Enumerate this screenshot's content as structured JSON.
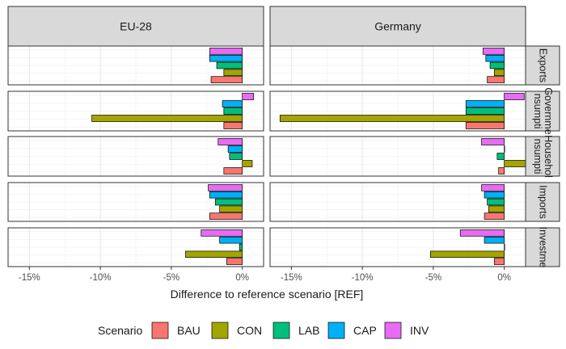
{
  "chart_data": {
    "type": "bar",
    "orientation": "horizontal",
    "facets_columns": [
      "EU-28",
      "Germany"
    ],
    "facets_rows": [
      "Exports",
      "Government consumption",
      "Household consumption",
      "Imports",
      "Investment"
    ],
    "facets_rows_display": [
      "Exports",
      "Governme\nnsumpti",
      "Househol\nnsumpti",
      "Imports",
      "Investme"
    ],
    "xlabel": "Difference to reference scenario [REF]",
    "xlim": [
      -16.5,
      1.5
    ],
    "xticks": [
      -15,
      -10,
      -5,
      0
    ],
    "xtick_labels": [
      "-15%",
      "-10%",
      "-5%",
      "0%"
    ],
    "grid": true,
    "legend": {
      "title": "Scenario",
      "position": "bottom",
      "entries": [
        "BAU",
        "CON",
        "LAB",
        "CAP",
        "INV"
      ]
    },
    "series_colors": {
      "BAU": "#F8766D",
      "CON": "#A3A500",
      "LAB": "#00BF7D",
      "CAP": "#00B0F6",
      "INV": "#E76BF3"
    },
    "panels": [
      {
        "column": "EU-28",
        "row": "Exports",
        "values": {
          "BAU": -2.2,
          "CON": -1.3,
          "LAB": -1.8,
          "CAP": -2.3,
          "INV": -2.3
        }
      },
      {
        "column": "EU-28",
        "row": "Government consumption",
        "values": {
          "BAU": -1.3,
          "CON": -10.6,
          "LAB": -1.3,
          "CAP": -1.4,
          "INV": 0.8
        }
      },
      {
        "column": "EU-28",
        "row": "Household consumption",
        "values": {
          "BAU": -1.3,
          "CON": 0.7,
          "LAB": -0.9,
          "CAP": -1.0,
          "INV": -1.7
        }
      },
      {
        "column": "EU-28",
        "row": "Imports",
        "values": {
          "BAU": -2.3,
          "CON": -1.6,
          "LAB": -1.9,
          "CAP": -2.3,
          "INV": -2.4
        }
      },
      {
        "column": "EU-28",
        "row": "Investment",
        "values": {
          "BAU": -1.1,
          "CON": -4.0,
          "LAB": -0.2,
          "CAP": -1.6,
          "INV": -2.9
        }
      },
      {
        "column": "Germany",
        "row": "Exports",
        "values": {
          "BAU": -1.2,
          "CON": -0.7,
          "LAB": -1.0,
          "CAP": -1.3,
          "INV": -1.5
        }
      },
      {
        "column": "Germany",
        "row": "Government consumption",
        "values": {
          "BAU": -2.7,
          "CON": -15.8,
          "LAB": -2.7,
          "CAP": -2.7,
          "INV": 1.4
        }
      },
      {
        "column": "Germany",
        "row": "Household consumption",
        "values": {
          "BAU": -0.4,
          "CON": 1.5,
          "LAB": -0.5,
          "CAP": 0.0,
          "INV": -1.6
        }
      },
      {
        "column": "Germany",
        "row": "Imports",
        "values": {
          "BAU": -1.4,
          "CON": -1.1,
          "LAB": -1.2,
          "CAP": -1.4,
          "INV": -1.6
        }
      },
      {
        "column": "Germany",
        "row": "Investment",
        "values": {
          "BAU": -0.7,
          "CON": -5.2,
          "LAB": 0.0,
          "CAP": -1.4,
          "INV": -3.1
        }
      }
    ]
  }
}
